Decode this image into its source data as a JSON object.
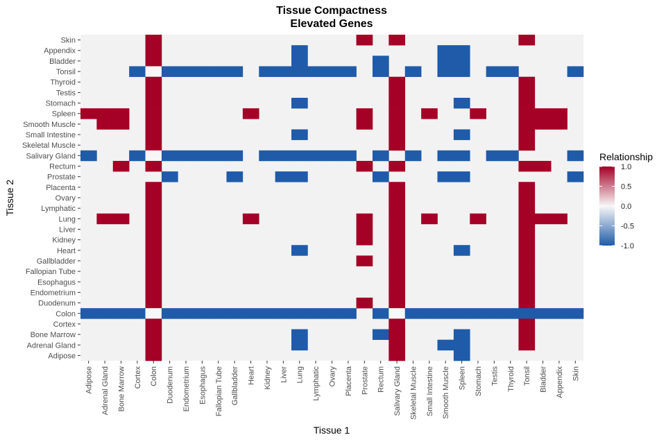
{
  "chart_data": {
    "type": "heatmap",
    "title": [
      "Tissue Compactness",
      "Elevated Genes"
    ],
    "xlabel": "Tissue 1",
    "ylabel": "Tissue 2",
    "x_categories": [
      "Adipose",
      "Adrenal Gland",
      "Bone Marrow",
      "Cortex",
      "Colon",
      "Duodenum",
      "Endometrium",
      "Esophagus",
      "Fallopian Tube",
      "Gallbladder",
      "Heart",
      "Kidney",
      "Liver",
      "Lung",
      "Lymphatic",
      "Ovary",
      "Placenta",
      "Prostate",
      "Rectum",
      "Salivary Gland",
      "Skeletal Muscle",
      "Small Intestine",
      "Smooth Muscle",
      "Spleen",
      "Stomach",
      "Testis",
      "Thyroid",
      "Tonsil",
      "Bladder",
      "Appendix",
      "Skin"
    ],
    "y_categories": [
      "Adipose",
      "Adrenal Gland",
      "Bone Marrow",
      "Cortex",
      "Colon",
      "Duodenum",
      "Endometrium",
      "Esophagus",
      "Fallopian Tube",
      "Gallbladder",
      "Heart",
      "Kidney",
      "Liver",
      "Lung",
      "Lymphatic",
      "Ovary",
      "Placenta",
      "Prostate",
      "Rectum",
      "Salivary Gland",
      "Skeletal Muscle",
      "Small Intestine",
      "Smooth Muscle",
      "Spleen",
      "Stomach",
      "Testis",
      "Thyroid",
      "Tonsil",
      "Bladder",
      "Appendix",
      "Skin"
    ],
    "cells": [
      {
        "y": "Skin",
        "cols": [
          "Colon",
          1,
          "Prostate",
          1,
          "Salivary Gland",
          1,
          "Tonsil",
          1
        ]
      },
      {
        "y": "Appendix",
        "cols": [
          "Colon",
          1,
          "Lung",
          -1,
          "Smooth Muscle",
          -1,
          "Spleen",
          -1
        ]
      },
      {
        "y": "Bladder",
        "cols": [
          "Colon",
          1,
          "Lung",
          -1,
          "Rectum",
          -1,
          "Smooth Muscle",
          -1,
          "Spleen",
          -1
        ]
      },
      {
        "y": "Tonsil",
        "cols": [
          "Cortex",
          -1,
          "Colon",
          0,
          "Duodenum",
          -1,
          "Endometrium",
          -1,
          "Esophagus",
          -1,
          "Fallopian Tube",
          -1,
          "Gallbladder",
          -1,
          "Kidney",
          -1,
          "Liver",
          -1,
          "Lung",
          -1,
          "Lymphatic",
          -1,
          "Ovary",
          -1,
          "Placenta",
          -1,
          "Rectum",
          -1,
          "Skeletal Muscle",
          -1,
          "Smooth Muscle",
          -1,
          "Spleen",
          -1,
          "Testis",
          -1,
          "Thyroid",
          -1,
          "Skin",
          -1
        ]
      },
      {
        "y": "Thyroid",
        "cols": [
          "Colon",
          1,
          "Salivary Gland",
          1,
          "Tonsil",
          1
        ]
      },
      {
        "y": "Testis",
        "cols": [
          "Colon",
          1,
          "Salivary Gland",
          1,
          "Tonsil",
          1
        ]
      },
      {
        "y": "Stomach",
        "cols": [
          "Colon",
          1,
          "Lung",
          -1,
          "Salivary Gland",
          1,
          "Spleen",
          -1,
          "Tonsil",
          1
        ]
      },
      {
        "y": "Spleen",
        "cols": [
          "Adipose",
          1,
          "Adrenal Gland",
          1,
          "Bone Marrow",
          1,
          "Colon",
          1,
          "Heart",
          1,
          "Prostate",
          1,
          "Salivary Gland",
          1,
          "Small Intestine",
          1,
          "Stomach",
          1,
          "Tonsil",
          1,
          "Bladder",
          1,
          "Appendix",
          1
        ]
      },
      {
        "y": "Smooth Muscle",
        "cols": [
          "Adrenal Gland",
          1,
          "Bone Marrow",
          1,
          "Colon",
          1,
          "Prostate",
          1,
          "Salivary Gland",
          1,
          "Tonsil",
          1,
          "Bladder",
          1,
          "Appendix",
          1
        ]
      },
      {
        "y": "Small Intestine",
        "cols": [
          "Colon",
          1,
          "Lung",
          -1,
          "Salivary Gland",
          1,
          "Spleen",
          -1,
          "Tonsil",
          1
        ]
      },
      {
        "y": "Skeletal Muscle",
        "cols": [
          "Colon",
          1,
          "Salivary Gland",
          1,
          "Tonsil",
          1
        ]
      },
      {
        "y": "Salivary Gland",
        "cols": [
          "Adipose",
          -1,
          "Cortex",
          -1,
          "Colon",
          0,
          "Duodenum",
          -1,
          "Endometrium",
          -1,
          "Esophagus",
          -1,
          "Fallopian Tube",
          -1,
          "Gallbladder",
          -1,
          "Kidney",
          -1,
          "Liver",
          -1,
          "Lung",
          -1,
          "Lymphatic",
          -1,
          "Ovary",
          -1,
          "Placenta",
          -1,
          "Rectum",
          -1,
          "Skeletal Muscle",
          -1,
          "Smooth Muscle",
          -1,
          "Spleen",
          -1,
          "Testis",
          -1,
          "Thyroid",
          -1,
          "Skin",
          -1
        ]
      },
      {
        "y": "Rectum",
        "cols": [
          "Bone Marrow",
          1,
          "Colon",
          1,
          "Prostate",
          1,
          "Salivary Gland",
          1,
          "Tonsil",
          1,
          "Bladder",
          1
        ]
      },
      {
        "y": "Prostate",
        "cols": [
          "Duodenum",
          -1,
          "Gallbladder",
          -1,
          "Liver",
          -1,
          "Lung",
          -1,
          "Rectum",
          -1,
          "Smooth Muscle",
          -1,
          "Spleen",
          -1,
          "Skin",
          -1
        ]
      },
      {
        "y": "Placenta",
        "cols": [
          "Colon",
          1,
          "Salivary Gland",
          1,
          "Tonsil",
          1
        ]
      },
      {
        "y": "Ovary",
        "cols": [
          "Colon",
          1,
          "Salivary Gland",
          1,
          "Tonsil",
          1
        ]
      },
      {
        "y": "Lymphatic",
        "cols": [
          "Colon",
          1,
          "Salivary Gland",
          1,
          "Tonsil",
          1
        ]
      },
      {
        "y": "Lung",
        "cols": [
          "Adrenal Gland",
          1,
          "Bone Marrow",
          1,
          "Colon",
          1,
          "Heart",
          1,
          "Prostate",
          1,
          "Salivary Gland",
          1,
          "Small Intestine",
          1,
          "Stomach",
          1,
          "Tonsil",
          1,
          "Bladder",
          1,
          "Appendix",
          1
        ]
      },
      {
        "y": "Liver",
        "cols": [
          "Colon",
          1,
          "Prostate",
          1,
          "Salivary Gland",
          1,
          "Tonsil",
          1
        ]
      },
      {
        "y": "Kidney",
        "cols": [
          "Colon",
          1,
          "Prostate",
          1,
          "Salivary Gland",
          1,
          "Tonsil",
          1
        ]
      },
      {
        "y": "Heart",
        "cols": [
          "Colon",
          1,
          "Lung",
          -1,
          "Salivary Gland",
          1,
          "Spleen",
          -1,
          "Tonsil",
          1
        ]
      },
      {
        "y": "Gallbladder",
        "cols": [
          "Colon",
          1,
          "Prostate",
          1,
          "Salivary Gland",
          1,
          "Tonsil",
          1
        ]
      },
      {
        "y": "Fallopian Tube",
        "cols": [
          "Colon",
          1,
          "Salivary Gland",
          1,
          "Tonsil",
          1
        ]
      },
      {
        "y": "Esophagus",
        "cols": [
          "Colon",
          1,
          "Salivary Gland",
          1,
          "Tonsil",
          1
        ]
      },
      {
        "y": "Endometrium",
        "cols": [
          "Colon",
          1,
          "Salivary Gland",
          1,
          "Tonsil",
          1
        ]
      },
      {
        "y": "Duodenum",
        "cols": [
          "Colon",
          1,
          "Prostate",
          1,
          "Salivary Gland",
          1,
          "Tonsil",
          1
        ]
      },
      {
        "y": "Colon",
        "cols": [
          "Adipose",
          -1,
          "Adrenal Gland",
          -1,
          "Bone Marrow",
          -1,
          "Cortex",
          -1,
          "Colon",
          0,
          "Duodenum",
          -1,
          "Endometrium",
          -1,
          "Esophagus",
          -1,
          "Fallopian Tube",
          -1,
          "Gallbladder",
          -1,
          "Heart",
          -1,
          "Kidney",
          -1,
          "Liver",
          -1,
          "Lung",
          -1,
          "Lymphatic",
          -1,
          "Ovary",
          -1,
          "Placenta",
          -1,
          "Rectum",
          -1,
          "Salivary Gland",
          0,
          "Skeletal Muscle",
          -1,
          "Small Intestine",
          -1,
          "Smooth Muscle",
          -1,
          "Spleen",
          -1,
          "Stomach",
          -1,
          "Testis",
          -1,
          "Thyroid",
          -1,
          "Tonsil",
          -1,
          "Bladder",
          -1,
          "Appendix",
          -1,
          "Skin",
          -1
        ]
      },
      {
        "y": "Cortex",
        "cols": [
          "Colon",
          1,
          "Salivary Gland",
          1,
          "Tonsil",
          1
        ]
      },
      {
        "y": "Bone Marrow",
        "cols": [
          "Colon",
          1,
          "Lung",
          -1,
          "Rectum",
          -1,
          "Salivary Gland",
          1,
          "Spleen",
          -1,
          "Tonsil",
          1
        ]
      },
      {
        "y": "Adrenal Gland",
        "cols": [
          "Colon",
          1,
          "Lung",
          -1,
          "Salivary Gland",
          1,
          "Smooth Muscle",
          -1,
          "Spleen",
          -1,
          "Tonsil",
          1
        ]
      },
      {
        "y": "Adipose",
        "cols": [
          "Colon",
          1,
          "Salivary Gland",
          1,
          "Spleen",
          -1
        ]
      }
    ],
    "legend": {
      "title": "Relationship",
      "placement": "right",
      "range": [
        -1,
        1
      ],
      "ticks": [
        1,
        0.5,
        0,
        -0.5,
        -1
      ],
      "tick_labels": [
        "1.0",
        "0.5",
        "0.0",
        "-0.5",
        "-1.0"
      ]
    },
    "colors": {
      "high": "#a50026",
      "mid": "#f7f7f7",
      "low": "#1f5ba8",
      "panel_background": "#f2f2f2",
      "missing": "#f2f2f2"
    },
    "grid": false
  }
}
